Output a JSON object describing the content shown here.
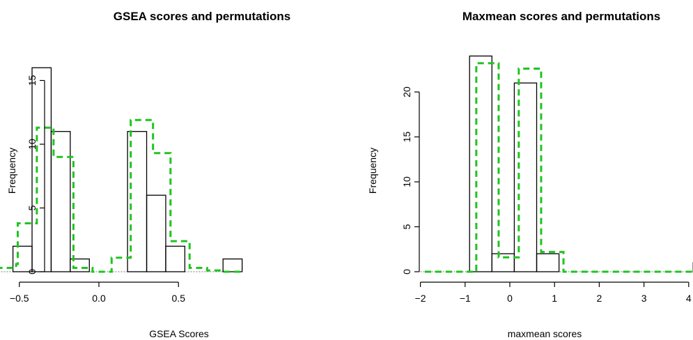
{
  "chart_data": [
    {
      "type": "histogram",
      "title": "GSEA scores and permutations",
      "xlabel": "GSEA Scores",
      "ylabel": "Frequency",
      "xlim": [
        -0.65,
        0.9
      ],
      "ylim": [
        0,
        16
      ],
      "xticks": [
        -0.5,
        0.0,
        0.5
      ],
      "xtick_labels": [
        "−0.5",
        "0.0",
        "0.5"
      ],
      "yticks": [
        0,
        5,
        10,
        15
      ],
      "bin_width": 0.12,
      "bins_start": [
        -0.54,
        -0.42,
        -0.3,
        -0.18,
        0.18,
        0.3,
        0.42,
        0.78
      ],
      "values": [
        2,
        16,
        11,
        1,
        11,
        6,
        2,
        1
      ],
      "permutation_step": {
        "x": [
          -0.645,
          -0.52,
          -0.51,
          -0.4,
          -0.39,
          -0.29,
          -0.285,
          -0.17,
          -0.16,
          -0.04,
          0.08,
          0.19,
          0.2,
          0.33,
          0.34,
          0.44,
          0.45,
          0.56,
          0.57,
          0.68,
          0.79,
          0.9
        ],
        "y": [
          0.3,
          0.6,
          3.8,
          3.8,
          11.3,
          11.3,
          9.0,
          9.0,
          0.3,
          0.0,
          1.1,
          1.1,
          11.9,
          11.9,
          9.3,
          9.3,
          2.4,
          2.4,
          0.3,
          0.1,
          0.0,
          0.0
        ]
      }
    },
    {
      "type": "histogram",
      "title": "Maxmean scores and permutations",
      "xlabel": "maxmean scores",
      "ylabel": "Frequency",
      "xlim": [
        -2,
        4.8
      ],
      "ylim": [
        0,
        24
      ],
      "xticks": [
        -2,
        -1,
        0,
        1,
        2,
        3,
        4
      ],
      "xtick_labels": [
        "−2",
        "−1",
        "0",
        "1",
        "2",
        "3",
        "4"
      ],
      "yticks": [
        0,
        5,
        10,
        15,
        20
      ],
      "bin_width": 0.5,
      "bins_start": [
        -0.9,
        -0.4,
        0.1,
        0.6,
        4.1
      ],
      "values": [
        24,
        2,
        21,
        2,
        1
      ],
      "permutation_step": {
        "x": [
          -1.9,
          -0.85,
          -0.75,
          -0.3,
          -0.25,
          0.1,
          0.2,
          0.6,
          0.7,
          1.1,
          1.2,
          1.6,
          4.6
        ],
        "y": [
          0.0,
          0.0,
          23.2,
          23.2,
          1.6,
          1.6,
          22.6,
          22.6,
          2.2,
          2.2,
          0.0,
          0.0,
          0.0
        ]
      }
    }
  ]
}
